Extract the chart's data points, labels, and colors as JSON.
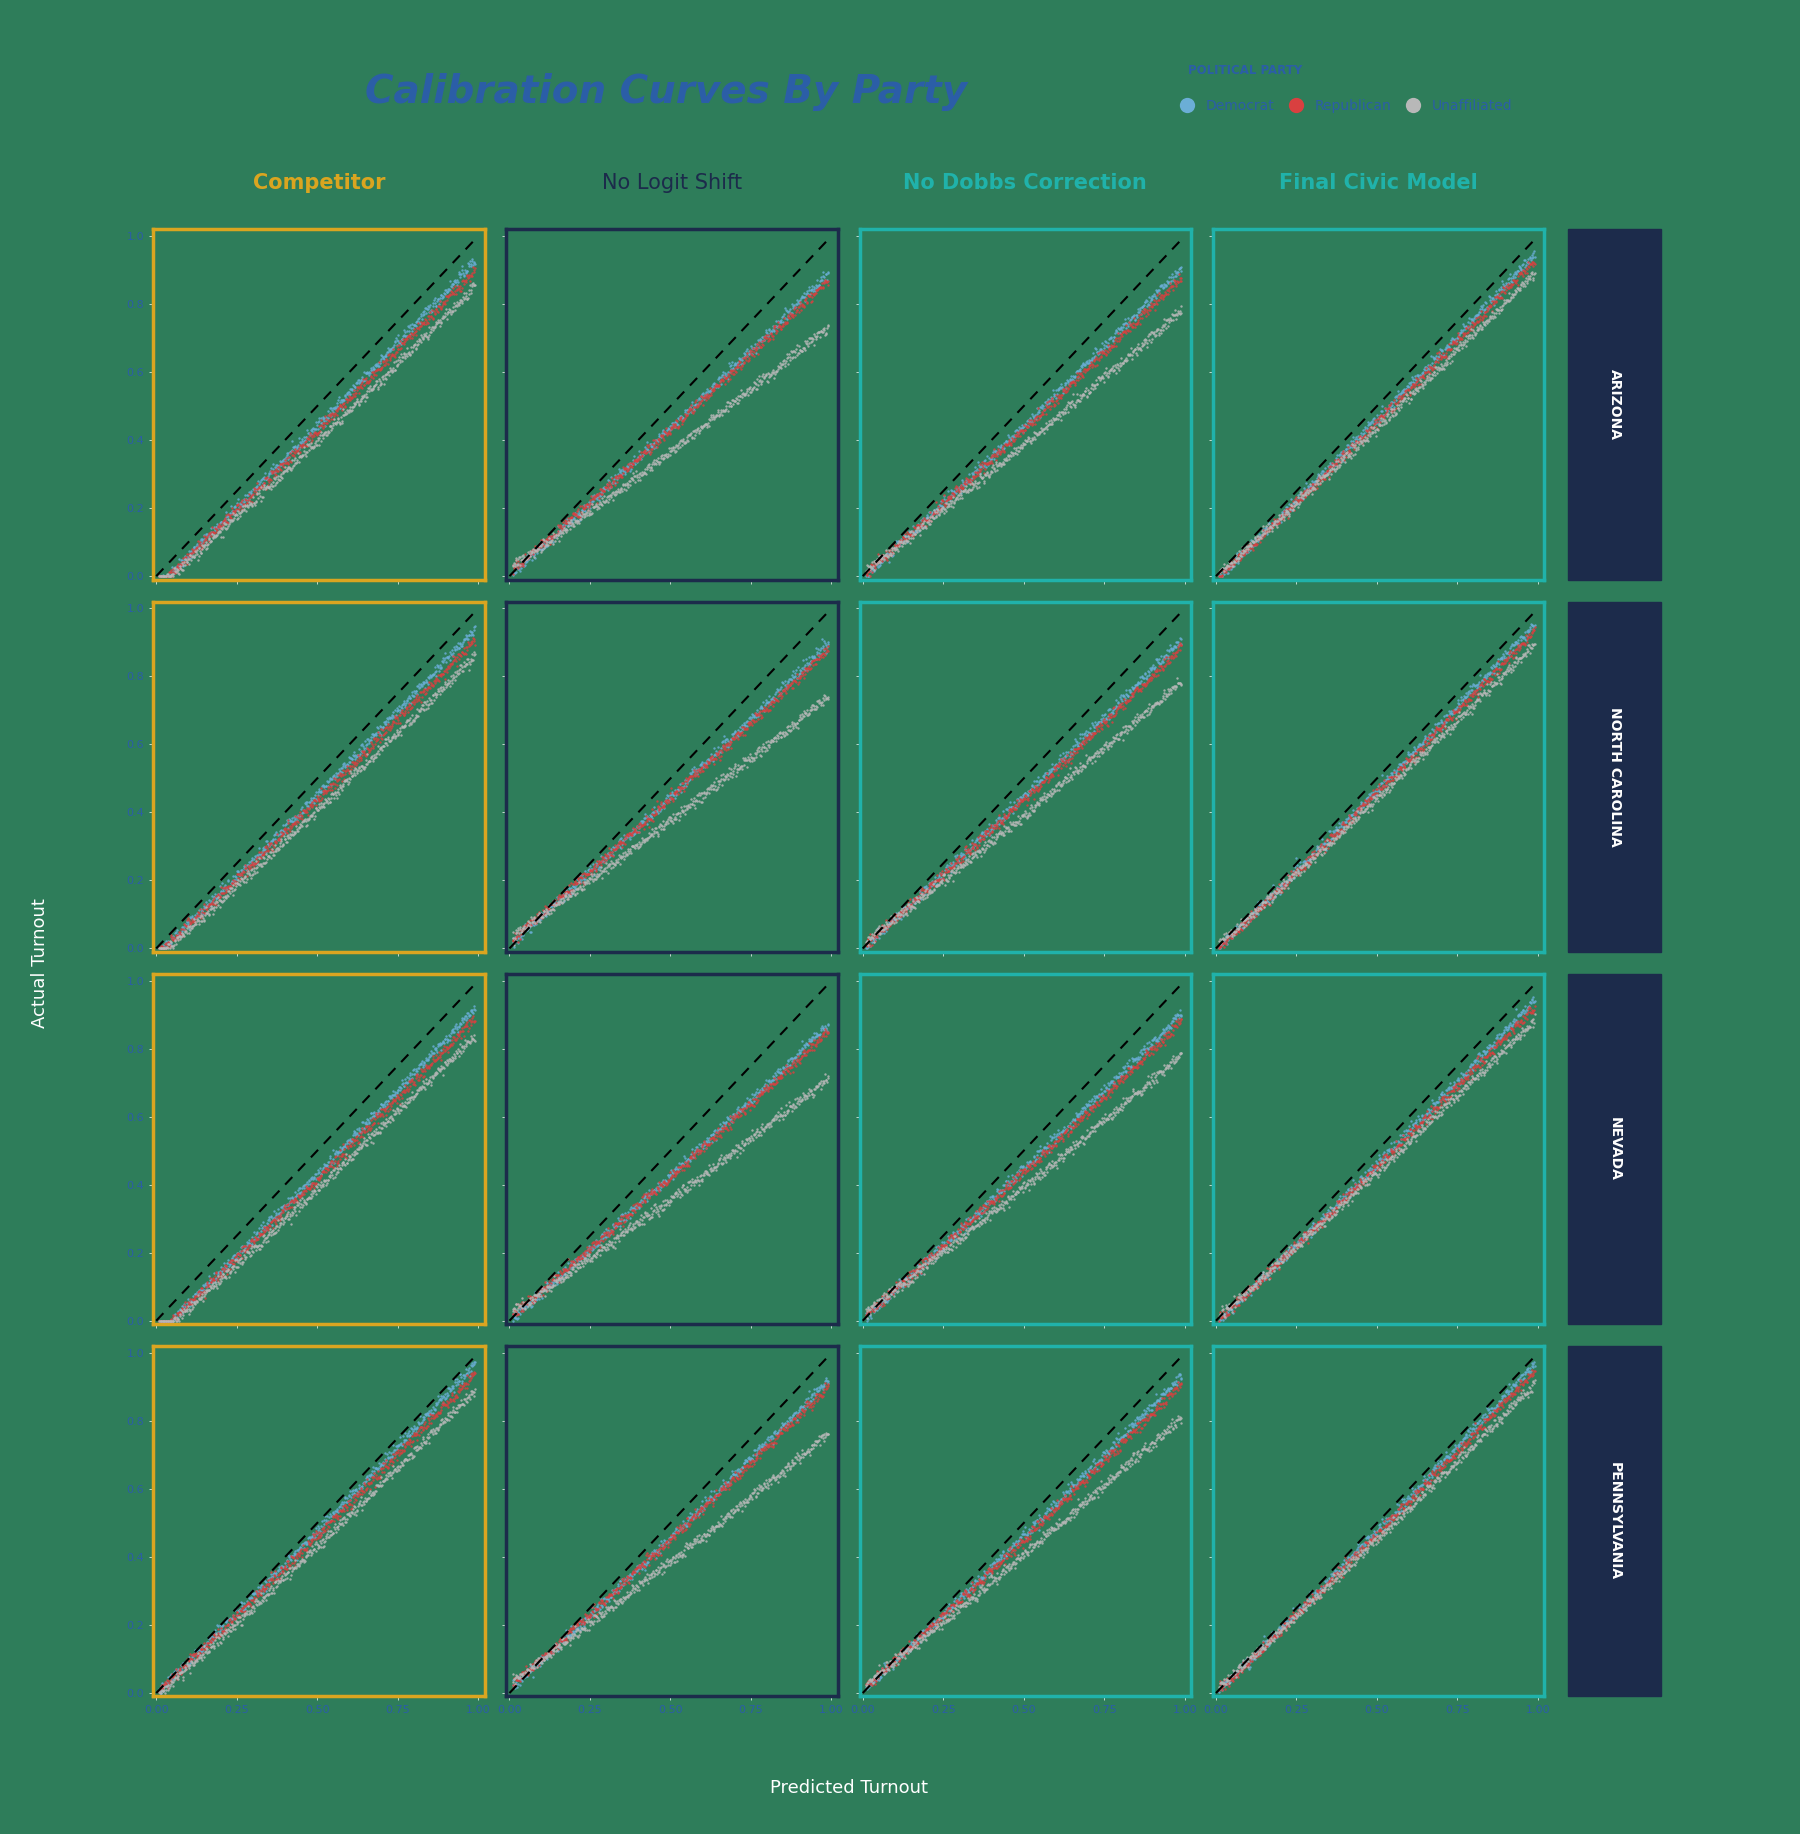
{
  "title": "Calibration Curves By Party",
  "title_color": "#2B5EA7",
  "background_color": "#2E7D5A",
  "legend_title": "POLITICAL PARTY",
  "parties": [
    "Democrat",
    "Republican",
    "Unaffiliated"
  ],
  "party_colors": [
    "#6BAED6",
    "#D94040",
    "#B8B8B8"
  ],
  "states": [
    "ARIZONA",
    "NORTH CAROLINA",
    "NEVADA",
    "PENNSYLVANIA"
  ],
  "models": [
    "Competitor",
    "No Logit Shift",
    "No Dobbs Correction",
    "Final Civic Model"
  ],
  "model_title_colors": [
    "#DAA520",
    "#1C2B4B",
    "#20B2AA",
    "#20B2AA"
  ],
  "col_border_colors": [
    "#DAA520",
    "#1C2B4B",
    "#20B2AA",
    "#20B2AA"
  ],
  "row_label_bg": "#1C2B4B",
  "row_label_color": "#FFFFFF",
  "tick_color": "#2B5EA7",
  "xlabel": "Predicted Turnout",
  "ylabel": "Actual Turnout",
  "n_points": 500,
  "seed": 42
}
